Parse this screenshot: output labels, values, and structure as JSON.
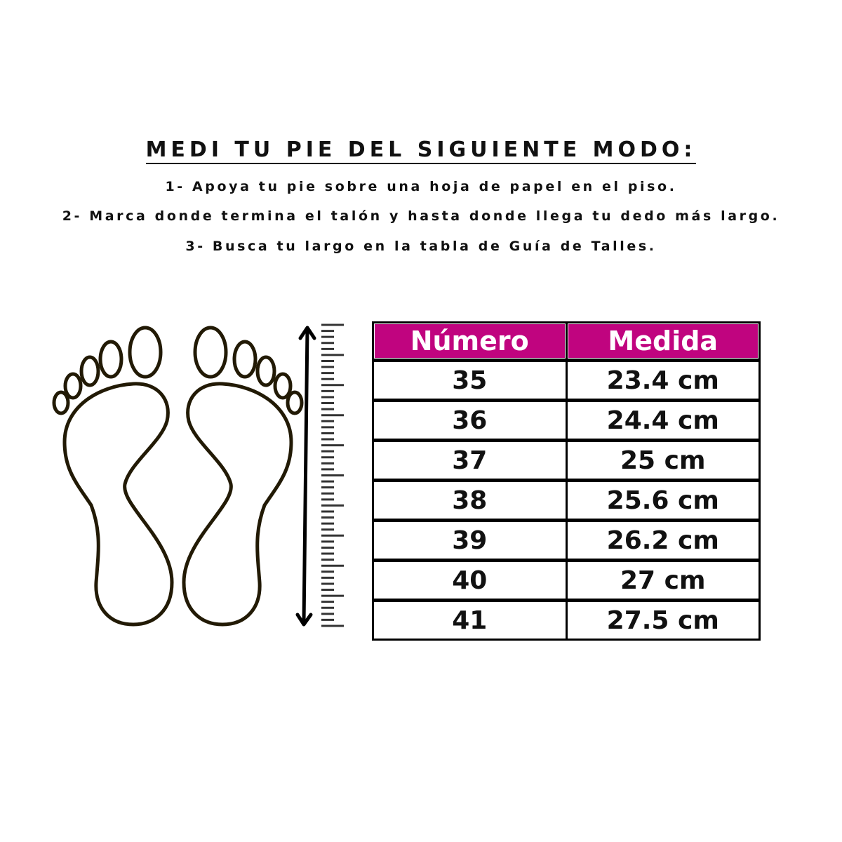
{
  "title": "MEDI TU PIE DEL SIGUIENTE MODO:",
  "steps": [
    "1- Apoya tu pie sobre una hoja de papel en el piso.",
    "2- Marca donde termina el talón y hasta donde llega tu dedo más largo.",
    "3- Busca tu largo en la tabla de Guía de Talles."
  ],
  "table": {
    "headers": [
      "Número",
      "Medida"
    ],
    "header_color": "#c0047f",
    "rows": [
      [
        "35",
        "23.4 cm"
      ],
      [
        "36",
        "24.4 cm"
      ],
      [
        "37",
        "25 cm"
      ],
      [
        "38",
        "25.6 cm"
      ],
      [
        "39",
        "26.2 cm"
      ],
      [
        "40",
        "27 cm"
      ],
      [
        "41",
        "27.5 cm"
      ]
    ]
  },
  "icons": [
    "left-foot-icon",
    "right-foot-icon",
    "double-arrow-icon",
    "ruler-icon"
  ]
}
